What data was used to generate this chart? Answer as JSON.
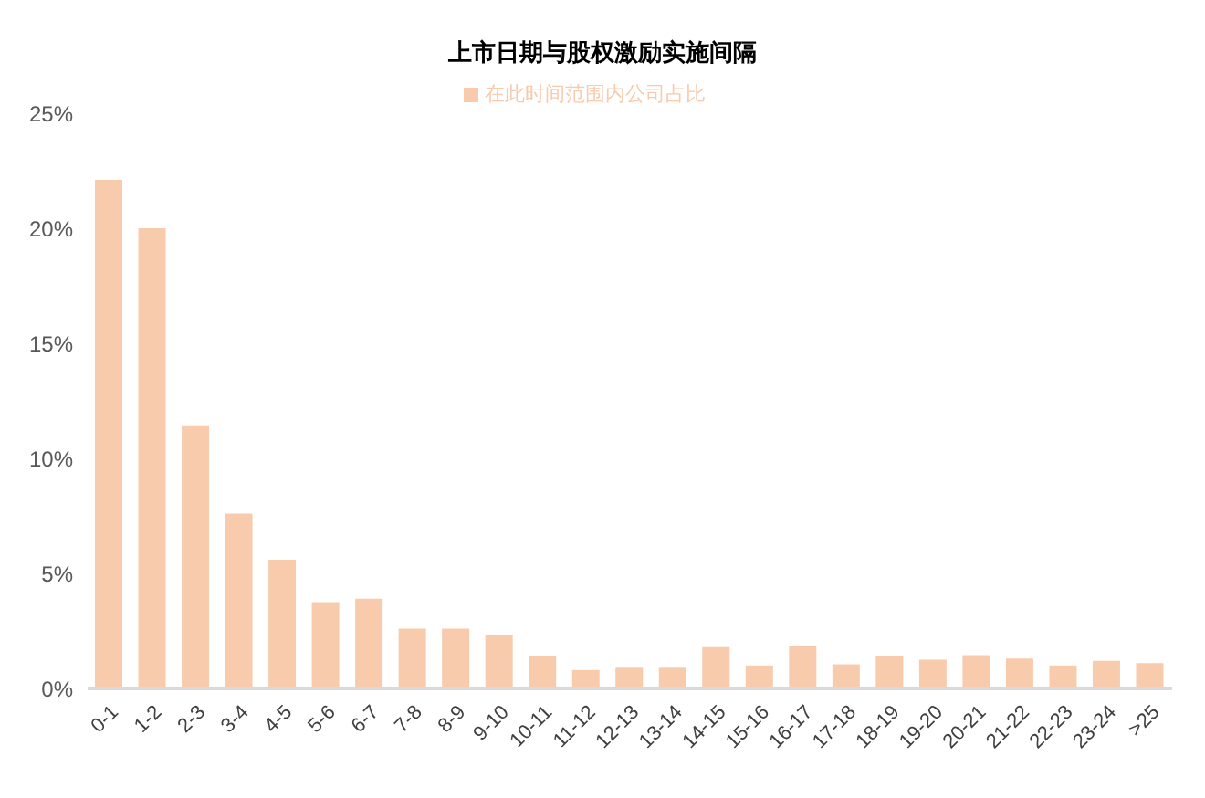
{
  "chart_data": {
    "type": "bar",
    "title": "上市日期与股权激励实施间隔",
    "categories": [
      "0-1",
      "1-2",
      "2-3",
      "3-4",
      "4-5",
      "5-6",
      "6-7",
      "7-8",
      "8-9",
      "9-10",
      "10-11",
      "11-12",
      "12-13",
      "13-14",
      "14-15",
      "15-16",
      "16-17",
      "17-18",
      "18-19",
      "19-20",
      "20-21",
      "21-22",
      "22-23",
      "23-24",
      ">25"
    ],
    "series": [
      {
        "name": "在此时间范围内公司占比",
        "color": "#f8cbad",
        "values": [
          22.1,
          20.0,
          11.4,
          7.6,
          5.6,
          3.75,
          3.9,
          2.6,
          2.6,
          2.3,
          1.4,
          0.8,
          0.9,
          0.9,
          1.8,
          1.0,
          1.85,
          1.05,
          1.4,
          1.25,
          1.45,
          1.3,
          1.0,
          1.2,
          1.1
        ]
      }
    ],
    "ylim": [
      0,
      25
    ],
    "yticks": [
      {
        "value": 0,
        "label": "0%"
      },
      {
        "value": 5,
        "label": "5%"
      },
      {
        "value": 10,
        "label": "10%"
      },
      {
        "value": 15,
        "label": "15%"
      },
      {
        "value": 20,
        "label": "20%"
      },
      {
        "value": 25,
        "label": "25%"
      }
    ],
    "grid": false,
    "legend": "top"
  }
}
